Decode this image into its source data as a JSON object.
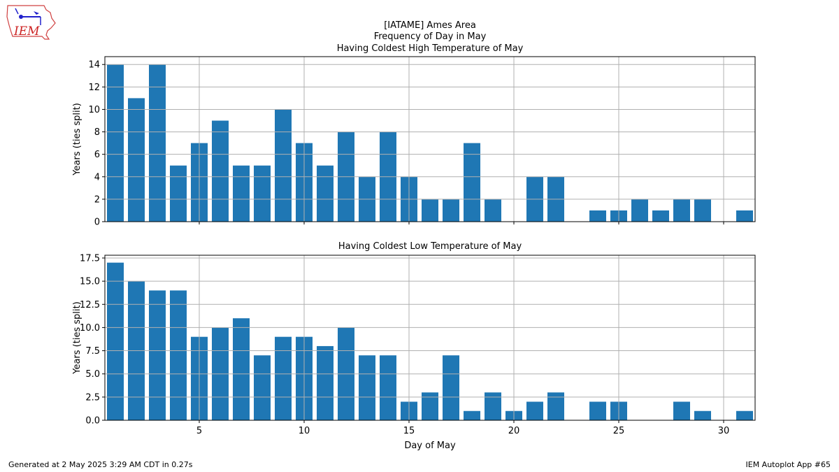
{
  "logo": {
    "text": "IEM"
  },
  "title_lines": [
    "[IATAME] Ames Area",
    "Frequency of Day in May",
    "Having Coldest High Temperature of May"
  ],
  "footer": {
    "left": "Generated at 2 May 2025 3:29 AM CDT in 0.27s",
    "right": "IEM Autoplot App #65"
  },
  "colors": {
    "bar": "#1f77b4",
    "grid": "#b0b0b0"
  },
  "chart_data": [
    {
      "type": "bar",
      "title": "Having Coldest High Temperature of May",
      "xlabel": "",
      "ylabel": "Years (ties split)",
      "xlim": [
        0.5,
        31.5
      ],
      "ylim": [
        0,
        14.7
      ],
      "xticks": [
        5,
        10,
        15,
        20,
        25,
        30
      ],
      "yticks": [
        0,
        2,
        4,
        6,
        8,
        10,
        12,
        14
      ],
      "ytick_labels": [
        "0",
        "2",
        "4",
        "6",
        "8",
        "10",
        "12",
        "14"
      ],
      "grid": true,
      "days": [
        1,
        2,
        3,
        4,
        5,
        6,
        7,
        8,
        9,
        10,
        11,
        12,
        13,
        14,
        15,
        16,
        17,
        18,
        19,
        20,
        21,
        22,
        23,
        24,
        25,
        26,
        27,
        28,
        29,
        30,
        31
      ],
      "values": [
        14,
        11,
        14,
        5,
        7,
        9,
        5,
        5,
        10,
        7,
        5,
        8,
        4,
        8,
        4,
        2,
        2,
        7,
        2,
        0,
        4,
        4,
        0,
        1,
        1,
        2,
        1,
        2,
        2,
        0,
        1
      ]
    },
    {
      "type": "bar",
      "title": "Having Coldest Low Temperature of May",
      "xlabel": "Day of May",
      "ylabel": "Years (ties split)",
      "xlim": [
        0.5,
        31.5
      ],
      "ylim": [
        0,
        17.8
      ],
      "xticks": [
        5,
        10,
        15,
        20,
        25,
        30
      ],
      "yticks": [
        0,
        2.5,
        5,
        7.5,
        10,
        12.5,
        15,
        17.5
      ],
      "ytick_labels": [
        "0.0",
        "2.5",
        "5.0",
        "7.5",
        "10.0",
        "12.5",
        "15.0",
        "17.5"
      ],
      "grid": true,
      "days": [
        1,
        2,
        3,
        4,
        5,
        6,
        7,
        8,
        9,
        10,
        11,
        12,
        13,
        14,
        15,
        16,
        17,
        18,
        19,
        20,
        21,
        22,
        23,
        24,
        25,
        26,
        27,
        28,
        29,
        30,
        31
      ],
      "values": [
        17,
        15,
        14,
        14,
        9,
        10,
        11,
        7,
        9,
        9,
        8,
        10,
        7,
        7,
        2,
        3,
        7,
        1,
        3,
        1,
        2,
        3,
        0,
        2,
        2,
        0,
        0,
        2,
        1,
        0,
        1
      ]
    }
  ]
}
